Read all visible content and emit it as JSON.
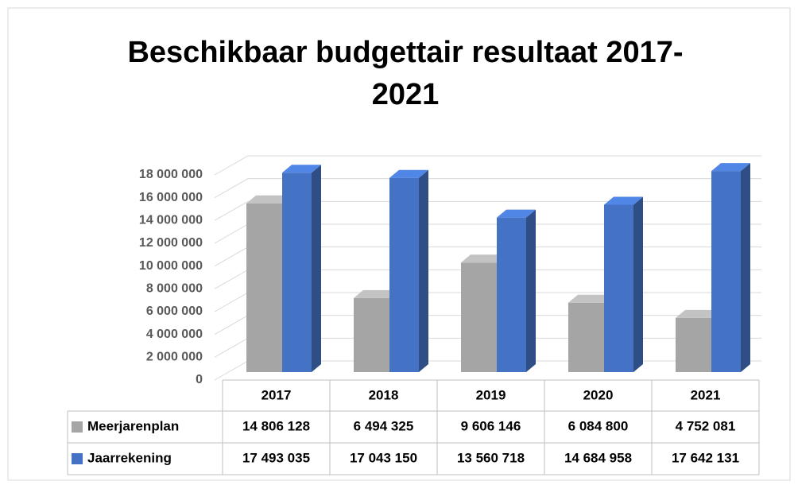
{
  "chart_data": {
    "type": "bar3d",
    "title": "Beschikbaar budgettair resultaat 2017-2021",
    "categories": [
      "2017",
      "2018",
      "2019",
      "2020",
      "2021"
    ],
    "series": [
      {
        "name": "Meerjarenplan",
        "color": "#a5a5a5",
        "values": [
          14806128,
          6494325,
          9606146,
          6084800,
          4752081
        ],
        "value_labels": [
          "14 806 128",
          "6 494 325",
          "9 606 146",
          "6 084 800",
          "4 752 081"
        ]
      },
      {
        "name": "Jaarrekening",
        "color": "#4472c4",
        "values": [
          17493035,
          17043150,
          13560718,
          14684958,
          17642131
        ],
        "value_labels": [
          "17 493 035",
          "17 043 150",
          "13 560 718",
          "14 684 958",
          "17 642 131"
        ]
      }
    ],
    "ylim": [
      0,
      18000000
    ],
    "yticks": [
      0,
      {
        "value": 2000000,
        "label": "2 000 000"
      },
      {
        "value": 4000000,
        "label": "4 000 000"
      },
      {
        "value": 6000000,
        "label": "6 000 000"
      },
      {
        "value": 8000000,
        "label": "8 000 000"
      },
      {
        "value": 10000000,
        "label": "10 000 000"
      },
      {
        "value": 12000000,
        "label": "12 000 000"
      },
      {
        "value": 14000000,
        "label": "14 000 000"
      },
      {
        "value": 16000000,
        "label": "16 000 000"
      },
      {
        "value": 18000000,
        "label": "18 000 000"
      }
    ],
    "grid": true,
    "data_table": true
  }
}
